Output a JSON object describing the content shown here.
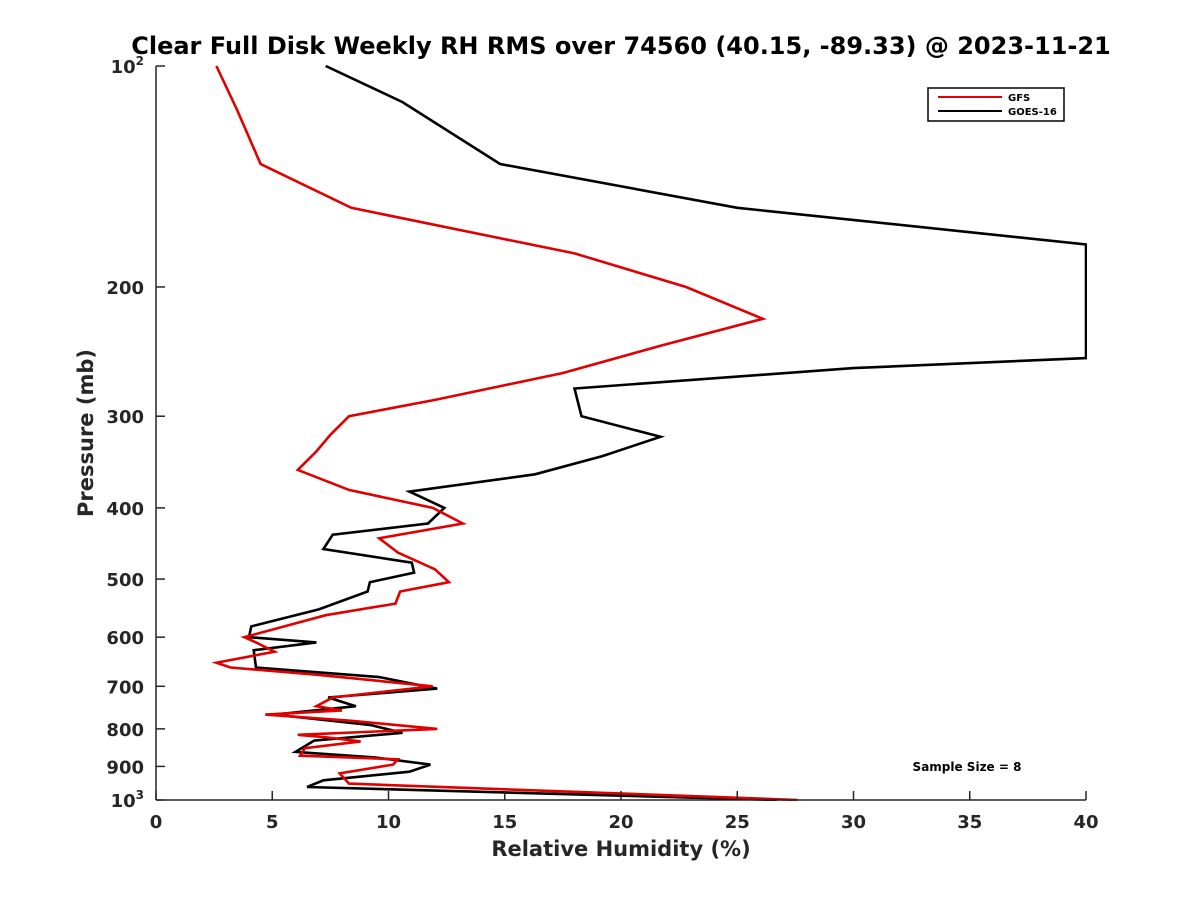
{
  "chart_data": {
    "type": "line",
    "title": "Clear Full Disk Weekly RH RMS over 74560 (40.15, -89.33) @ 2023-11-21",
    "xlabel": "Relative Humidity (%)",
    "ylabel": "Pressure (mb)",
    "xlim": [
      0,
      40
    ],
    "ylim": [
      100,
      1000
    ],
    "y_scale": "log",
    "y_reversed": true,
    "x_ticks": [
      "0",
      "5",
      "10",
      "15",
      "20",
      "25",
      "30",
      "35",
      "40"
    ],
    "y_ticks": [
      {
        "value": 100,
        "label": "10",
        "sup": "2"
      },
      {
        "value": 200,
        "label": "200"
      },
      {
        "value": 300,
        "label": "300"
      },
      {
        "value": 400,
        "label": "400"
      },
      {
        "value": 500,
        "label": "500"
      },
      {
        "value": 600,
        "label": "600"
      },
      {
        "value": 700,
        "label": "700"
      },
      {
        "value": 800,
        "label": "800"
      },
      {
        "value": 900,
        "label": "900"
      },
      {
        "value": 1000,
        "label": "10",
        "sup": "3"
      }
    ],
    "legend_position": "top-right",
    "annotation": "Sample Size = 8",
    "series": [
      {
        "name": "GFS",
        "color": "#e00000",
        "points": [
          [
            2.6,
            100
          ],
          [
            3.5,
            115
          ],
          [
            4.5,
            136
          ],
          [
            8.4,
            156
          ],
          [
            18.0,
            180
          ],
          [
            22.8,
            200
          ],
          [
            26.1,
            221
          ],
          [
            21.8,
            240
          ],
          [
            17.5,
            262
          ],
          [
            12.0,
            285
          ],
          [
            8.3,
            300
          ],
          [
            7.5,
            318
          ],
          [
            6.9,
            335
          ],
          [
            6.1,
            355
          ],
          [
            8.3,
            378
          ],
          [
            11.9,
            400
          ],
          [
            13.2,
            420
          ],
          [
            9.6,
            440
          ],
          [
            10.4,
            460
          ],
          [
            12.0,
            485
          ],
          [
            12.6,
            505
          ],
          [
            10.5,
            520
          ],
          [
            10.3,
            540
          ],
          [
            7.3,
            560
          ],
          [
            3.8,
            600
          ],
          [
            4.3,
            610
          ],
          [
            5.1,
            628
          ],
          [
            2.6,
            650
          ],
          [
            3.2,
            660
          ],
          [
            6.9,
            675
          ],
          [
            11.9,
            700
          ],
          [
            7.6,
            725
          ],
          [
            6.9,
            745
          ],
          [
            8.0,
            755
          ],
          [
            4.7,
            765
          ],
          [
            8.4,
            780
          ],
          [
            12.1,
            800
          ],
          [
            6.1,
            815
          ],
          [
            7.4,
            822
          ],
          [
            8.8,
            832
          ],
          [
            6.4,
            850
          ],
          [
            6.2,
            870
          ],
          [
            10.4,
            880
          ],
          [
            10.2,
            895
          ],
          [
            7.9,
            920
          ],
          [
            8.3,
            950
          ],
          [
            27.6,
            1000
          ]
        ]
      },
      {
        "name": "GOES-16",
        "color": "#000000",
        "points": [
          [
            7.3,
            100
          ],
          [
            10.6,
            112
          ],
          [
            14.8,
            136
          ],
          [
            25.0,
            156
          ],
          [
            40.0,
            175
          ],
          [
            40.0,
            250
          ],
          [
            30.0,
            258
          ],
          [
            18.0,
            275
          ],
          [
            18.3,
            300
          ],
          [
            21.7,
            320
          ],
          [
            19.2,
            340
          ],
          [
            16.3,
            360
          ],
          [
            10.9,
            380
          ],
          [
            12.4,
            400
          ],
          [
            11.7,
            420
          ],
          [
            7.6,
            435
          ],
          [
            7.2,
            455
          ],
          [
            11.0,
            475
          ],
          [
            11.1,
            490
          ],
          [
            9.2,
            505
          ],
          [
            9.1,
            520
          ],
          [
            7.0,
            550
          ],
          [
            4.1,
            580
          ],
          [
            4.0,
            600
          ],
          [
            6.9,
            610
          ],
          [
            4.2,
            625
          ],
          [
            4.3,
            660
          ],
          [
            9.6,
            680
          ],
          [
            12.1,
            705
          ],
          [
            7.4,
            725
          ],
          [
            8.6,
            745
          ],
          [
            5.1,
            765
          ],
          [
            9.2,
            790
          ],
          [
            10.6,
            810
          ],
          [
            6.8,
            830
          ],
          [
            6.0,
            860
          ],
          [
            9.4,
            875
          ],
          [
            11.8,
            895
          ],
          [
            10.9,
            915
          ],
          [
            7.2,
            940
          ],
          [
            6.5,
            960
          ],
          [
            26.7,
            1000
          ]
        ]
      }
    ]
  }
}
